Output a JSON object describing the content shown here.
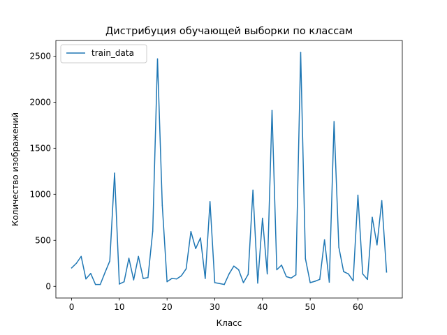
{
  "chart_data": {
    "type": "line",
    "title": "Дистрибуция обучающей выборки по классам",
    "xlabel": "Класс",
    "ylabel": "Количество изображений",
    "xlim": [
      -3.3,
      69.3
    ],
    "ylim": [
      -127,
      2670
    ],
    "xticks": [
      0,
      10,
      20,
      30,
      40,
      50,
      60
    ],
    "yticks": [
      0,
      500,
      1000,
      1500,
      2000,
      2500
    ],
    "legend_position": "upper-left",
    "grid": false,
    "colors": {
      "series": "#1f77b4"
    },
    "series": [
      {
        "name": "train_data",
        "x": [
          0,
          1,
          2,
          3,
          4,
          5,
          6,
          7,
          8,
          9,
          10,
          11,
          12,
          13,
          14,
          15,
          16,
          17,
          18,
          19,
          20,
          21,
          22,
          23,
          24,
          25,
          26,
          27,
          28,
          29,
          30,
          31,
          32,
          33,
          34,
          35,
          36,
          37,
          38,
          39,
          40,
          41,
          42,
          43,
          44,
          45,
          46,
          47,
          48,
          49,
          50,
          51,
          52,
          53,
          54,
          55,
          56,
          57,
          58,
          59,
          60,
          61,
          62,
          63,
          64,
          65,
          66
        ],
        "values": [
          200,
          250,
          325,
          80,
          140,
          20,
          20,
          150,
          275,
          1230,
          25,
          50,
          305,
          70,
          325,
          85,
          95,
          600,
          2470,
          880,
          50,
          85,
          80,
          115,
          190,
          595,
          410,
          525,
          85,
          920,
          40,
          30,
          20,
          135,
          220,
          180,
          40,
          130,
          1045,
          35,
          740,
          135,
          1910,
          180,
          230,
          105,
          90,
          125,
          2540,
          300,
          40,
          55,
          75,
          505,
          45,
          1790,
          425,
          160,
          135,
          60,
          990,
          135,
          75,
          750,
          450,
          930,
          155
        ]
      }
    ]
  }
}
